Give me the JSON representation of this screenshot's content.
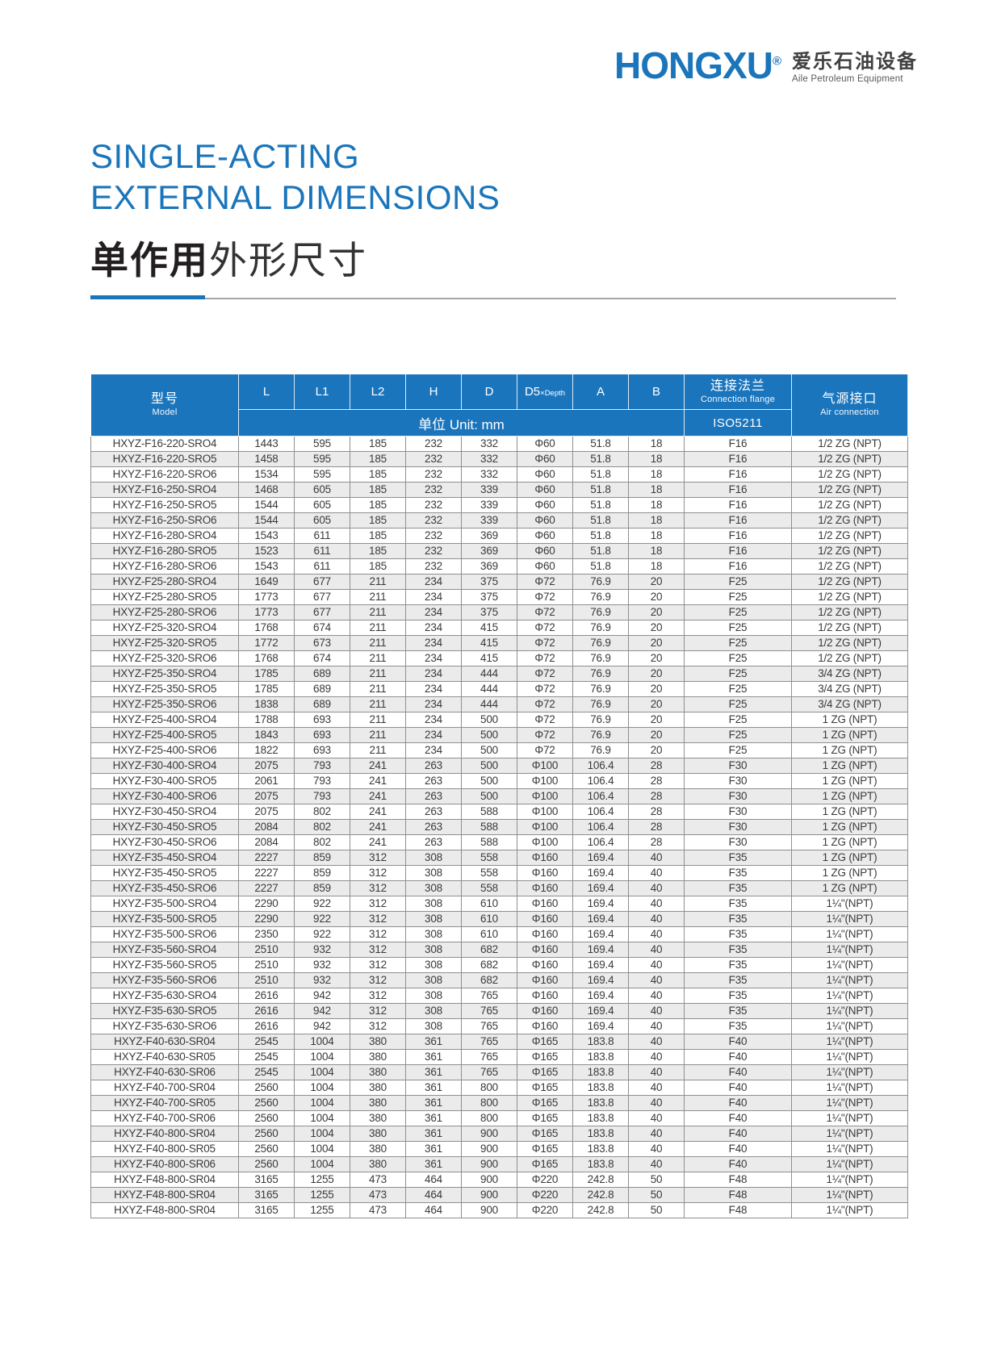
{
  "logo": {
    "brand": "HONGXU",
    "registered_mark": "®",
    "name_cn": "爱乐石油设备",
    "name_en": "Aile Petroleum Equipment"
  },
  "title": {
    "line1_en": "SINGLE-ACTING",
    "line2_en": "EXTERNAL DIMENSIONS",
    "cn_bold": "单作用",
    "cn_regular": "外形尺寸"
  },
  "colors": {
    "brand_blue": "#1b75bb",
    "header_blue": "#1b75bc",
    "alt_row_gray": "#ebebeb",
    "grid_line": "#8f8f8f",
    "title_dark": "#231f20"
  },
  "table": {
    "model_header": {
      "cn": "型号",
      "en": "Model"
    },
    "columns": [
      "L",
      "L1",
      "L2",
      "H",
      "D"
    ],
    "d5_header": {
      "main": "D5",
      "sub": "×Depth"
    },
    "columns2": [
      "A",
      "B"
    ],
    "unit_label": "单位 Unit: mm",
    "flange_header": {
      "cn": "连接法兰",
      "en": "Connection flange",
      "std": "ISO5211"
    },
    "air_header": {
      "cn": "气源接口",
      "en": "Air connection"
    },
    "rows": [
      [
        "HXYZ-F16-220-SRO4",
        "1443",
        "595",
        "185",
        "232",
        "332",
        "Φ60",
        "51.8",
        "18",
        "F16",
        "1/2 ZG (NPT)"
      ],
      [
        "HXYZ-F16-220-SRO5",
        "1458",
        "595",
        "185",
        "232",
        "332",
        "Φ60",
        "51.8",
        "18",
        "F16",
        "1/2 ZG (NPT)"
      ],
      [
        "HXYZ-F16-220-SRO6",
        "1534",
        "595",
        "185",
        "232",
        "332",
        "Φ60",
        "51.8",
        "18",
        "F16",
        "1/2 ZG (NPT)"
      ],
      [
        "HXYZ-F16-250-SRO4",
        "1468",
        "605",
        "185",
        "232",
        "339",
        "Φ60",
        "51.8",
        "18",
        "F16",
        "1/2 ZG (NPT)"
      ],
      [
        "HXYZ-F16-250-SRO5",
        "1544",
        "605",
        "185",
        "232",
        "339",
        "Φ60",
        "51.8",
        "18",
        "F16",
        "1/2 ZG (NPT)"
      ],
      [
        "HXYZ-F16-250-SRO6",
        "1544",
        "605",
        "185",
        "232",
        "339",
        "Φ60",
        "51.8",
        "18",
        "F16",
        "1/2 ZG (NPT)"
      ],
      [
        "HXYZ-F16-280-SRO4",
        "1543",
        "611",
        "185",
        "232",
        "369",
        "Φ60",
        "51.8",
        "18",
        "F16",
        "1/2 ZG (NPT)"
      ],
      [
        "HXYZ-F16-280-SRO5",
        "1523",
        "611",
        "185",
        "232",
        "369",
        "Φ60",
        "51.8",
        "18",
        "F16",
        "1/2 ZG (NPT)"
      ],
      [
        "HXYZ-F16-280-SRO6",
        "1543",
        "611",
        "185",
        "232",
        "369",
        "Φ60",
        "51.8",
        "18",
        "F16",
        "1/2 ZG (NPT)"
      ],
      [
        "HXYZ-F25-280-SRO4",
        "1649",
        "677",
        "211",
        "234",
        "375",
        "Φ72",
        "76.9",
        "20",
        "F25",
        "1/2 ZG (NPT)"
      ],
      [
        "HXYZ-F25-280-SRO5",
        "1773",
        "677",
        "211",
        "234",
        "375",
        "Φ72",
        "76.9",
        "20",
        "F25",
        "1/2 ZG (NPT)"
      ],
      [
        "HXYZ-F25-280-SRO6",
        "1773",
        "677",
        "211",
        "234",
        "375",
        "Φ72",
        "76.9",
        "20",
        "F25",
        "1/2 ZG (NPT)"
      ],
      [
        "HXYZ-F25-320-SRO4",
        "1768",
        "674",
        "211",
        "234",
        "415",
        "Φ72",
        "76.9",
        "20",
        "F25",
        "1/2 ZG (NPT)"
      ],
      [
        "HXYZ-F25-320-SRO5",
        "1772",
        "673",
        "211",
        "234",
        "415",
        "Φ72",
        "76.9",
        "20",
        "F25",
        "1/2 ZG (NPT)"
      ],
      [
        "HXYZ-F25-320-SRO6",
        "1768",
        "674",
        "211",
        "234",
        "415",
        "Φ72",
        "76.9",
        "20",
        "F25",
        "1/2 ZG (NPT)"
      ],
      [
        "HXYZ-F25-350-SRO4",
        "1785",
        "689",
        "211",
        "234",
        "444",
        "Φ72",
        "76.9",
        "20",
        "F25",
        "3/4 ZG (NPT)"
      ],
      [
        "HXYZ-F25-350-SRO5",
        "1785",
        "689",
        "211",
        "234",
        "444",
        "Φ72",
        "76.9",
        "20",
        "F25",
        "3/4 ZG (NPT)"
      ],
      [
        "HXYZ-F25-350-SRO6",
        "1838",
        "689",
        "211",
        "234",
        "444",
        "Φ72",
        "76.9",
        "20",
        "F25",
        "3/4 ZG (NPT)"
      ],
      [
        "HXYZ-F25-400-SRO4",
        "1788",
        "693",
        "211",
        "234",
        "500",
        "Φ72",
        "76.9",
        "20",
        "F25",
        "1 ZG (NPT)"
      ],
      [
        "HXYZ-F25-400-SRO5",
        "1843",
        "693",
        "211",
        "234",
        "500",
        "Φ72",
        "76.9",
        "20",
        "F25",
        "1 ZG (NPT)"
      ],
      [
        "HXYZ-F25-400-SRO6",
        "1822",
        "693",
        "211",
        "234",
        "500",
        "Φ72",
        "76.9",
        "20",
        "F25",
        "1 ZG (NPT)"
      ],
      [
        "HXYZ-F30-400-SRO4",
        "2075",
        "793",
        "241",
        "263",
        "500",
        "Φ100",
        "106.4",
        "28",
        "F30",
        "1 ZG (NPT)"
      ],
      [
        "HXYZ-F30-400-SRO5",
        "2061",
        "793",
        "241",
        "263",
        "500",
        "Φ100",
        "106.4",
        "28",
        "F30",
        "1 ZG (NPT)"
      ],
      [
        "HXYZ-F30-400-SRO6",
        "2075",
        "793",
        "241",
        "263",
        "500",
        "Φ100",
        "106.4",
        "28",
        "F30",
        "1 ZG (NPT)"
      ],
      [
        "HXYZ-F30-450-SRO4",
        "2075",
        "802",
        "241",
        "263",
        "588",
        "Φ100",
        "106.4",
        "28",
        "F30",
        "1 ZG (NPT)"
      ],
      [
        "HXYZ-F30-450-SRO5",
        "2084",
        "802",
        "241",
        "263",
        "588",
        "Φ100",
        "106.4",
        "28",
        "F30",
        "1 ZG (NPT)"
      ],
      [
        "HXYZ-F30-450-SRO6",
        "2084",
        "802",
        "241",
        "263",
        "588",
        "Φ100",
        "106.4",
        "28",
        "F30",
        "1 ZG (NPT)"
      ],
      [
        "HXYZ-F35-450-SRO4",
        "2227",
        "859",
        "312",
        "308",
        "558",
        "Φ160",
        "169.4",
        "40",
        "F35",
        "1 ZG (NPT)"
      ],
      [
        "HXYZ-F35-450-SRO5",
        "2227",
        "859",
        "312",
        "308",
        "558",
        "Φ160",
        "169.4",
        "40",
        "F35",
        "1 ZG (NPT)"
      ],
      [
        "HXYZ-F35-450-SRO6",
        "2227",
        "859",
        "312",
        "308",
        "558",
        "Φ160",
        "169.4",
        "40",
        "F35",
        "1 ZG (NPT)"
      ],
      [
        "HXYZ-F35-500-SRO4",
        "2290",
        "922",
        "312",
        "308",
        "610",
        "Φ160",
        "169.4",
        "40",
        "F35",
        "1¼\"(NPT)"
      ],
      [
        "HXYZ-F35-500-SRO5",
        "2290",
        "922",
        "312",
        "308",
        "610",
        "Φ160",
        "169.4",
        "40",
        "F35",
        "1¼\"(NPT)"
      ],
      [
        "HXYZ-F35-500-SRO6",
        "2350",
        "922",
        "312",
        "308",
        "610",
        "Φ160",
        "169.4",
        "40",
        "F35",
        "1¼\"(NPT)"
      ],
      [
        "HXYZ-F35-560-SRO4",
        "2510",
        "932",
        "312",
        "308",
        "682",
        "Φ160",
        "169.4",
        "40",
        "F35",
        "1¼\"(NPT)"
      ],
      [
        "HXYZ-F35-560-SRO5",
        "2510",
        "932",
        "312",
        "308",
        "682",
        "Φ160",
        "169.4",
        "40",
        "F35",
        "1¼\"(NPT)"
      ],
      [
        "HXYZ-F35-560-SRO6",
        "2510",
        "932",
        "312",
        "308",
        "682",
        "Φ160",
        "169.4",
        "40",
        "F35",
        "1¼\"(NPT)"
      ],
      [
        "HXYZ-F35-630-SRO4",
        "2616",
        "942",
        "312",
        "308",
        "765",
        "Φ160",
        "169.4",
        "40",
        "F35",
        "1¼\"(NPT)"
      ],
      [
        "HXYZ-F35-630-SRO5",
        "2616",
        "942",
        "312",
        "308",
        "765",
        "Φ160",
        "169.4",
        "40",
        "F35",
        "1¼\"(NPT)"
      ],
      [
        "HXYZ-F35-630-SRO6",
        "2616",
        "942",
        "312",
        "308",
        "765",
        "Φ160",
        "169.4",
        "40",
        "F35",
        "1¼\"(NPT)"
      ],
      [
        "HXYZ-F40-630-SR04",
        "2545",
        "1004",
        "380",
        "361",
        "765",
        "Φ165",
        "183.8",
        "40",
        "F40",
        "1¼\"(NPT)"
      ],
      [
        "HXYZ-F40-630-SR05",
        "2545",
        "1004",
        "380",
        "361",
        "765",
        "Φ165",
        "183.8",
        "40",
        "F40",
        "1¼\"(NPT)"
      ],
      [
        "HXYZ-F40-630-SR06",
        "2545",
        "1004",
        "380",
        "361",
        "765",
        "Φ165",
        "183.8",
        "40",
        "F40",
        "1¼\"(NPT)"
      ],
      [
        "HXYZ-F40-700-SR04",
        "2560",
        "1004",
        "380",
        "361",
        "800",
        "Φ165",
        "183.8",
        "40",
        "F40",
        "1¼\"(NPT)"
      ],
      [
        "HXYZ-F40-700-SR05",
        "2560",
        "1004",
        "380",
        "361",
        "800",
        "Φ165",
        "183.8",
        "40",
        "F40",
        "1¼\"(NPT)"
      ],
      [
        "HXYZ-F40-700-SR06",
        "2560",
        "1004",
        "380",
        "361",
        "800",
        "Φ165",
        "183.8",
        "40",
        "F40",
        "1¼\"(NPT)"
      ],
      [
        "HXYZ-F40-800-SR04",
        "2560",
        "1004",
        "380",
        "361",
        "900",
        "Φ165",
        "183.8",
        "40",
        "F40",
        "1¼\"(NPT)"
      ],
      [
        "HXYZ-F40-800-SR05",
        "2560",
        "1004",
        "380",
        "361",
        "900",
        "Φ165",
        "183.8",
        "40",
        "F40",
        "1¼\"(NPT)"
      ],
      [
        "HXYZ-F40-800-SR06",
        "2560",
        "1004",
        "380",
        "361",
        "900",
        "Φ165",
        "183.8",
        "40",
        "F40",
        "1¼\"(NPT)"
      ],
      [
        "HXYZ-F48-800-SR04",
        "3165",
        "1255",
        "473",
        "464",
        "900",
        "Φ220",
        "242.8",
        "50",
        "F48",
        "1¼\"(NPT)"
      ],
      [
        "HXYZ-F48-800-SR04",
        "3165",
        "1255",
        "473",
        "464",
        "900",
        "Φ220",
        "242.8",
        "50",
        "F48",
        "1¼\"(NPT)"
      ],
      [
        "HXYZ-F48-800-SR04",
        "3165",
        "1255",
        "473",
        "464",
        "900",
        "Φ220",
        "242.8",
        "50",
        "F48",
        "1¼\"(NPT)"
      ]
    ]
  }
}
